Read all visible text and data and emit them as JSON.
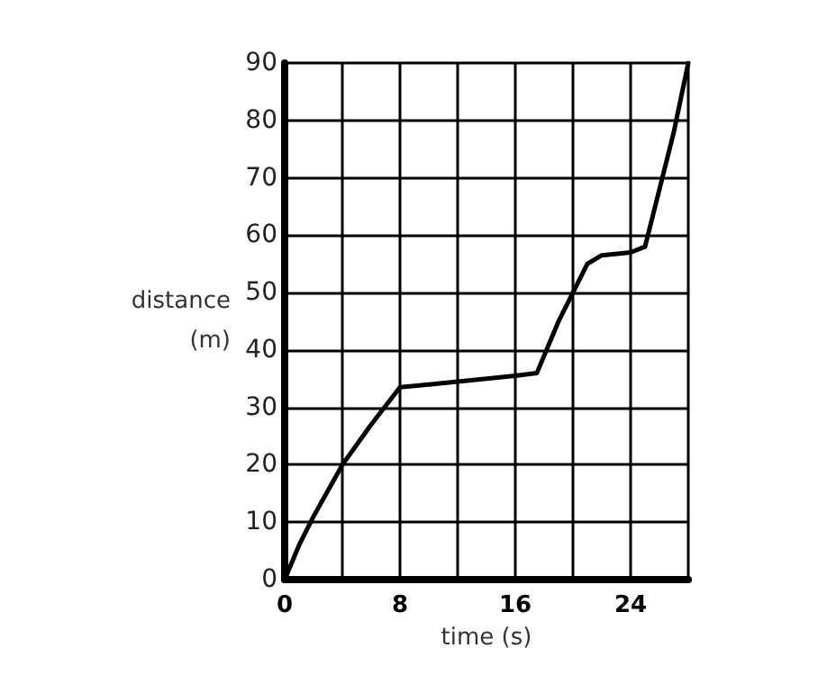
{
  "chart_data": {
    "type": "line",
    "xlabel": "time (s)",
    "ylabel": "distance (m)",
    "x": [
      0,
      1,
      2,
      4,
      6,
      8,
      10,
      12,
      14,
      16,
      17.5,
      19,
      20,
      21,
      22,
      24,
      25,
      26,
      27,
      28
    ],
    "series": [
      {
        "color": "#000000",
        "values": [
          0,
          6,
          11,
          20,
          27,
          33.5,
          34,
          34.5,
          35,
          35.5,
          36,
          45,
          50,
          55,
          56.5,
          57,
          58,
          68,
          78,
          90
        ]
      }
    ],
    "xlim": [
      0,
      28
    ],
    "xticks": [
      0,
      {
        "value": 4,
        "label": null
      },
      8,
      {
        "value": 12,
        "label": null
      },
      16,
      {
        "value": 20,
        "label": null
      },
      24,
      {
        "value": 28,
        "label": null
      }
    ],
    "ylim": [
      0,
      90
    ],
    "yticks": [
      0,
      10,
      20,
      30,
      40,
      50,
      60,
      70,
      80,
      90
    ],
    "grid": true,
    "marker": "none",
    "line_style": "solid"
  }
}
